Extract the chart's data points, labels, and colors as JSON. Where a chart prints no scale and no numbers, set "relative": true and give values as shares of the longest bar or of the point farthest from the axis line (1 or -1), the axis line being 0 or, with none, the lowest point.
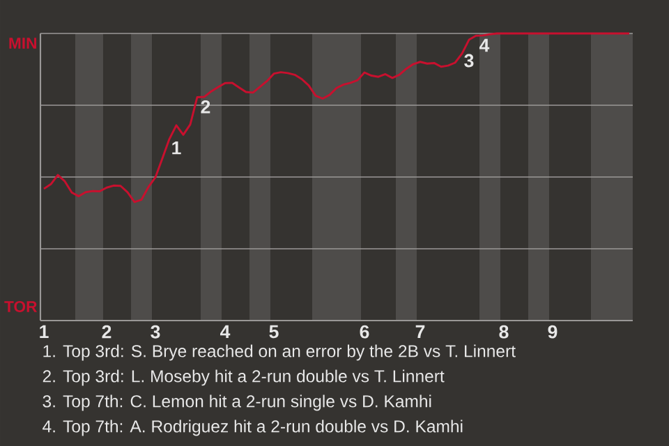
{
  "chart_data": {
    "type": "line",
    "color": "#c8102e",
    "relative": true,
    "categories": [
      "1",
      null,
      null,
      null,
      null,
      null,
      null,
      null,
      null,
      "2",
      null,
      null,
      null,
      null,
      null,
      null,
      "3",
      null,
      null,
      null,
      null,
      null,
      null,
      null,
      null,
      null,
      "4",
      null,
      null,
      null,
      null,
      null,
      null,
      "5",
      null,
      null,
      null,
      null,
      null,
      null,
      null,
      null,
      null,
      null,
      null,
      null,
      "6",
      null,
      null,
      null,
      null,
      null,
      null,
      null,
      "7",
      null,
      null,
      null,
      null,
      null,
      null,
      null,
      null,
      null,
      null,
      null,
      "8",
      null,
      null,
      null,
      null,
      null,
      null,
      "9",
      null,
      null,
      null,
      null,
      null,
      null,
      null,
      null,
      null,
      null,
      null
    ],
    "values": [
      0.459,
      0.475,
      0.507,
      0.485,
      0.446,
      0.433,
      0.447,
      0.451,
      0.45,
      0.463,
      0.47,
      0.469,
      0.447,
      0.413,
      0.421,
      0.465,
      0.499,
      0.565,
      0.632,
      0.68,
      0.647,
      0.683,
      0.778,
      0.779,
      0.798,
      0.813,
      0.827,
      0.828,
      0.812,
      0.796,
      0.794,
      0.814,
      0.834,
      0.86,
      0.865,
      0.862,
      0.856,
      0.841,
      0.819,
      0.783,
      0.773,
      0.786,
      0.81,
      0.822,
      0.828,
      0.837,
      0.864,
      0.853,
      0.849,
      0.858,
      0.845,
      0.856,
      0.877,
      0.893,
      0.901,
      0.895,
      0.897,
      0.884,
      0.888,
      0.898,
      0.93,
      0.978,
      0.992,
      0.993,
      0.997,
      1,
      1,
      1,
      1,
      1,
      1,
      1,
      1,
      1,
      1,
      1,
      1,
      1,
      1,
      1,
      1,
      1,
      1,
      1,
      1
    ],
    "grid": "y",
    "annotations": [
      {
        "text": "1",
        "y": 0.68
      },
      {
        "text": "2",
        "y": 0.778
      },
      {
        "text": "3",
        "y": 0.978
      },
      {
        "text": "4",
        "y": 0.992
      },
      "MIN",
      "TOR",
      "1. Top 3rd: S. Brye reached on an error by the 2B vs T. Linnert",
      "2. Top 3rd: L. Moseby hit a 2-run double vs T. Linnert",
      "3. Top 7th: C. Lemon hit a 2-run single vs D. Kamhi",
      "4. Top 7th: A. Rodriguez hit a 2-run double vs D. Kamhi"
    ]
  }
}
